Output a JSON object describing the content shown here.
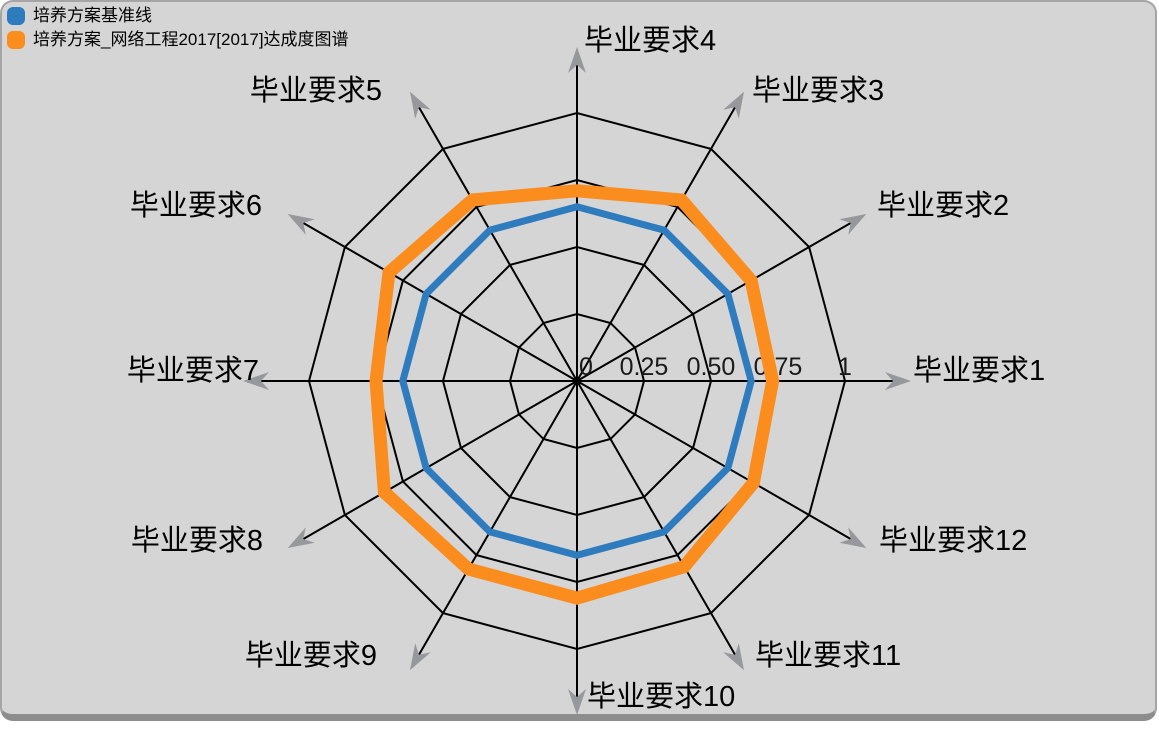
{
  "chart_data": {
    "type": "radar",
    "title": "",
    "categories": [
      "毕业要求1",
      "毕业要求2",
      "毕业要求3",
      "毕业要求4",
      "毕业要求5",
      "毕业要求6",
      "毕业要求7",
      "毕业要求8",
      "毕业要求9",
      "毕业要求10",
      "毕业要求11",
      "毕业要求12"
    ],
    "series": [
      {
        "name": "培养方案基准线",
        "color": "#2e7cbe",
        "values": [
          0.65,
          0.65,
          0.65,
          0.65,
          0.65,
          0.65,
          0.65,
          0.65,
          0.65,
          0.65,
          0.65,
          0.65
        ]
      },
      {
        "name": "培养方案_网络工程2017[2017]达成度图谱",
        "color": "#fb8c1e",
        "values": [
          0.73,
          0.75,
          0.78,
          0.71,
          0.78,
          0.81,
          0.75,
          0.83,
          0.81,
          0.81,
          0.8,
          0.76
        ]
      }
    ],
    "radial_ticks": [
      {
        "label": "0",
        "value": 0
      },
      {
        "label": "0.25",
        "value": 0.25
      },
      {
        "label": "0.50",
        "value": 0.5
      },
      {
        "label": "0.75",
        "value": 0.75
      },
      {
        "label": "1",
        "value": 1
      }
    ],
    "rlim": [
      0,
      1
    ],
    "grid_shape": "polygon",
    "grid_on": true,
    "grid_color": "#000000",
    "axis_label_color": "#000000",
    "tick_label_color": "#1a1a1a",
    "arrow_color": "#96989b",
    "background_color": "#d5d5d5",
    "first_axis_angle_deg": 0,
    "axes_direction": "counterclockwise",
    "legend_position": "top-left"
  }
}
